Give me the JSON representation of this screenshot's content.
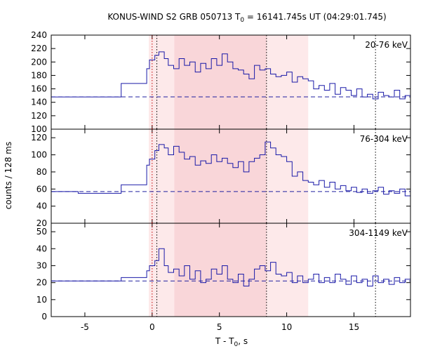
{
  "chart_data": {
    "type": "line",
    "title_main": "KONUS-WIND S2 GRB 050713 T",
    "title_sub": "0",
    "title_rest": " = 16141.745s UT (04:29:01.745)",
    "xlabel_main": "T - T",
    "xlabel_sub": "0",
    "xlabel_rest": ", s",
    "ylabel": "counts / 128 ms",
    "xlim": [
      -7.5,
      19.2
    ],
    "xticks": [
      -5,
      0,
      5,
      10,
      15
    ],
    "regions": [
      {
        "x0": -0.25,
        "x1": 11.6,
        "color": "#fde9ea"
      },
      {
        "x0": 1.65,
        "x1": 8.5,
        "color": "#f9d6d9"
      }
    ],
    "vlines": [
      {
        "x": 0.0,
        "style": "red-dotted"
      },
      {
        "x": 0.35,
        "style": "dotted"
      },
      {
        "x": 8.5,
        "style": "dotted"
      },
      {
        "x": 16.6,
        "style": "dotted"
      }
    ],
    "panels": [
      {
        "label": "20-76 keV",
        "ylim": [
          100,
          240
        ],
        "yticks": [
          100,
          120,
          140,
          160,
          180,
          200,
          220,
          240
        ],
        "baseline": 148,
        "steps": [
          [
            -7.5,
            148
          ],
          [
            -5.5,
            148
          ],
          [
            -2.3,
            168
          ],
          [
            -0.4,
            190
          ],
          [
            -0.2,
            203
          ],
          [
            0.2,
            210
          ],
          [
            0.5,
            215
          ],
          [
            0.9,
            205
          ],
          [
            1.2,
            195
          ],
          [
            1.6,
            190
          ],
          [
            2.0,
            205
          ],
          [
            2.4,
            195
          ],
          [
            2.8,
            200
          ],
          [
            3.2,
            185
          ],
          [
            3.6,
            198
          ],
          [
            4.0,
            190
          ],
          [
            4.4,
            205
          ],
          [
            4.8,
            195
          ],
          [
            5.2,
            212
          ],
          [
            5.6,
            200
          ],
          [
            6.0,
            190
          ],
          [
            6.4,
            188
          ],
          [
            6.8,
            182
          ],
          [
            7.2,
            175
          ],
          [
            7.6,
            195
          ],
          [
            8.0,
            188
          ],
          [
            8.4,
            190
          ],
          [
            8.8,
            182
          ],
          [
            9.2,
            178
          ],
          [
            9.6,
            180
          ],
          [
            10.0,
            185
          ],
          [
            10.4,
            170
          ],
          [
            10.8,
            178
          ],
          [
            11.2,
            175
          ],
          [
            11.6,
            172
          ],
          [
            12.0,
            160
          ],
          [
            12.4,
            165
          ],
          [
            12.8,
            158
          ],
          [
            13.2,
            168
          ],
          [
            13.6,
            152
          ],
          [
            14.0,
            162
          ],
          [
            14.4,
            158
          ],
          [
            14.8,
            150
          ],
          [
            15.2,
            160
          ],
          [
            15.6,
            148
          ],
          [
            16.0,
            152
          ],
          [
            16.4,
            145
          ],
          [
            16.8,
            155
          ],
          [
            17.2,
            150
          ],
          [
            17.6,
            148
          ],
          [
            18.0,
            158
          ],
          [
            18.4,
            145
          ],
          [
            18.8,
            150
          ],
          [
            19.2,
            150
          ]
        ]
      },
      {
        "label": "76-304 keV",
        "ylim": [
          20,
          130
        ],
        "yticks": [
          20,
          40,
          60,
          80,
          100,
          120
        ],
        "baseline": 57,
        "steps": [
          [
            -7.5,
            57
          ],
          [
            -5.5,
            55
          ],
          [
            -2.3,
            65
          ],
          [
            -0.4,
            88
          ],
          [
            -0.2,
            95
          ],
          [
            0.2,
            105
          ],
          [
            0.5,
            112
          ],
          [
            0.9,
            108
          ],
          [
            1.2,
            100
          ],
          [
            1.6,
            110
          ],
          [
            2.0,
            103
          ],
          [
            2.4,
            95
          ],
          [
            2.8,
            98
          ],
          [
            3.2,
            88
          ],
          [
            3.6,
            93
          ],
          [
            4.0,
            90
          ],
          [
            4.4,
            100
          ],
          [
            4.8,
            92
          ],
          [
            5.2,
            96
          ],
          [
            5.6,
            90
          ],
          [
            6.0,
            85
          ],
          [
            6.4,
            92
          ],
          [
            6.8,
            80
          ],
          [
            7.2,
            92
          ],
          [
            7.6,
            96
          ],
          [
            8.0,
            100
          ],
          [
            8.4,
            115
          ],
          [
            8.8,
            108
          ],
          [
            9.2,
            100
          ],
          [
            9.6,
            98
          ],
          [
            10.0,
            92
          ],
          [
            10.4,
            75
          ],
          [
            10.8,
            80
          ],
          [
            11.2,
            70
          ],
          [
            11.6,
            68
          ],
          [
            12.0,
            65
          ],
          [
            12.4,
            70
          ],
          [
            12.8,
            62
          ],
          [
            13.2,
            68
          ],
          [
            13.6,
            60
          ],
          [
            14.0,
            64
          ],
          [
            14.4,
            58
          ],
          [
            14.8,
            62
          ],
          [
            15.2,
            56
          ],
          [
            15.6,
            60
          ],
          [
            16.0,
            55
          ],
          [
            16.4,
            58
          ],
          [
            16.8,
            62
          ],
          [
            17.2,
            54
          ],
          [
            17.6,
            58
          ],
          [
            18.0,
            55
          ],
          [
            18.4,
            60
          ],
          [
            18.8,
            52
          ],
          [
            19.2,
            52
          ]
        ]
      },
      {
        "label": "304-1149 keV",
        "ylim": [
          0,
          55
        ],
        "yticks": [
          0,
          10,
          20,
          30,
          40,
          50
        ],
        "baseline": 21,
        "steps": [
          [
            -7.5,
            21
          ],
          [
            -5.5,
            21
          ],
          [
            -2.3,
            23
          ],
          [
            -0.4,
            27
          ],
          [
            -0.2,
            30
          ],
          [
            0.2,
            33
          ],
          [
            0.5,
            40
          ],
          [
            0.9,
            30
          ],
          [
            1.2,
            26
          ],
          [
            1.6,
            28
          ],
          [
            2.0,
            24
          ],
          [
            2.4,
            30
          ],
          [
            2.8,
            22
          ],
          [
            3.2,
            27
          ],
          [
            3.6,
            20
          ],
          [
            4.0,
            22
          ],
          [
            4.4,
            28
          ],
          [
            4.8,
            25
          ],
          [
            5.2,
            30
          ],
          [
            5.6,
            22
          ],
          [
            6.0,
            20
          ],
          [
            6.4,
            25
          ],
          [
            6.8,
            18
          ],
          [
            7.2,
            22
          ],
          [
            7.6,
            28
          ],
          [
            8.0,
            30
          ],
          [
            8.4,
            27
          ],
          [
            8.8,
            32
          ],
          [
            9.2,
            25
          ],
          [
            9.6,
            24
          ],
          [
            10.0,
            26
          ],
          [
            10.4,
            20
          ],
          [
            10.8,
            24
          ],
          [
            11.2,
            20
          ],
          [
            11.6,
            22
          ],
          [
            12.0,
            25
          ],
          [
            12.4,
            20
          ],
          [
            12.8,
            23
          ],
          [
            13.2,
            20
          ],
          [
            13.6,
            25
          ],
          [
            14.0,
            22
          ],
          [
            14.4,
            19
          ],
          [
            14.8,
            24
          ],
          [
            15.2,
            20
          ],
          [
            15.6,
            22
          ],
          [
            16.0,
            18
          ],
          [
            16.4,
            24
          ],
          [
            16.8,
            20
          ],
          [
            17.2,
            22
          ],
          [
            17.6,
            19
          ],
          [
            18.0,
            23
          ],
          [
            18.4,
            20
          ],
          [
            18.8,
            22
          ],
          [
            19.2,
            22
          ]
        ]
      }
    ]
  }
}
